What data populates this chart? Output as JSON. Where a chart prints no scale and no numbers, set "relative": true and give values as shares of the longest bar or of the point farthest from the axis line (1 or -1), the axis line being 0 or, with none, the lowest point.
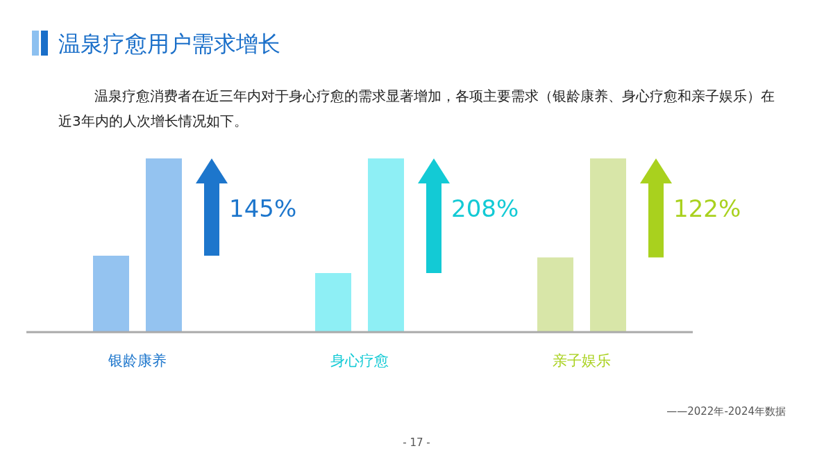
{
  "chart_data": {
    "type": "bar",
    "title": "温泉疗愈用户需求增长",
    "subtitle": "温泉疗愈消费者在近三年内对于身心疗愈的需求显著增加，各项主要需求（银龄康养、身心疗愈和亲子娱乐）在近3年内的人次增长情况如下。",
    "categories": [
      "银龄康养",
      "身心疗愈",
      "亲子娱乐"
    ],
    "relative": true,
    "series": [
      {
        "colors": [
          "#94c3f0",
          "#8eeff5",
          "#d8e6a8"
        ],
        "values": [
          0.44,
          0.34,
          0.43
        ]
      },
      {
        "colors": [
          "#94c3f0",
          "#8eeff5",
          "#d8e6a8"
        ],
        "values": [
          1,
          1,
          1
        ]
      }
    ],
    "annotations": [
      "145%",
      "208%",
      "122%",
      "——2022年-2024年数据",
      "- 17 -"
    ]
  }
}
